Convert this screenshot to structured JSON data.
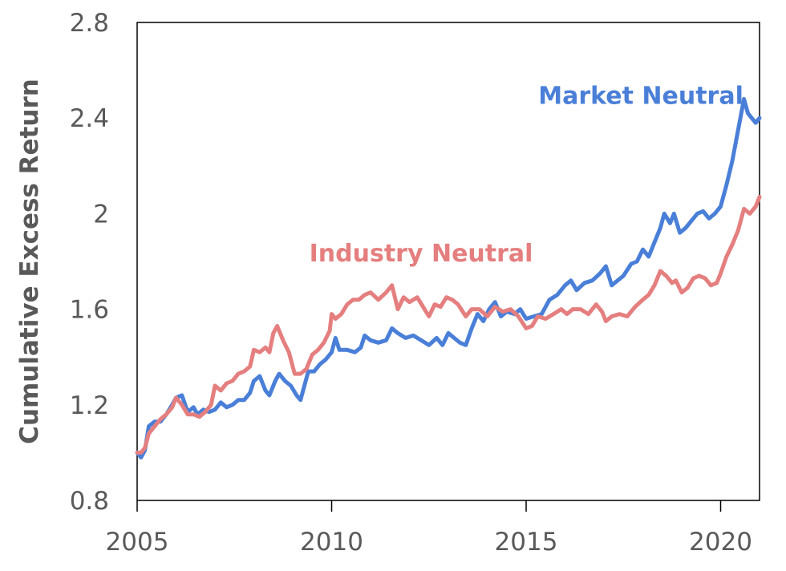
{
  "chart_data": {
    "type": "line",
    "title": "",
    "xlabel": "",
    "ylabel": "Cumulative Excess Return",
    "xlim": [
      2005,
      2021
    ],
    "ylim": [
      0.8,
      2.8
    ],
    "xticks": [
      2005,
      2010,
      2015,
      2020
    ],
    "yticks": [
      0.8,
      1.2,
      1.6,
      2,
      2.4,
      2.8
    ],
    "ytick_labels": [
      "0.8",
      "1.2",
      "1.6",
      "2",
      "2.4",
      "2.8"
    ],
    "grid": false,
    "legend": "none",
    "series": [
      {
        "name": "Market Neutral",
        "color": "#4a7fd8",
        "points": [
          [
            2005.0,
            1.0
          ],
          [
            2005.1,
            0.98
          ],
          [
            2005.2,
            1.01
          ],
          [
            2005.3,
            1.11
          ],
          [
            2005.45,
            1.13
          ],
          [
            2005.6,
            1.13
          ],
          [
            2005.75,
            1.16
          ],
          [
            2005.9,
            1.2
          ],
          [
            2006.0,
            1.23
          ],
          [
            2006.15,
            1.24
          ],
          [
            2006.3,
            1.17
          ],
          [
            2006.45,
            1.19
          ],
          [
            2006.55,
            1.16
          ],
          [
            2006.7,
            1.18
          ],
          [
            2006.85,
            1.17
          ],
          [
            2007.0,
            1.18
          ],
          [
            2007.15,
            1.21
          ],
          [
            2007.3,
            1.19
          ],
          [
            2007.45,
            1.2
          ],
          [
            2007.6,
            1.22
          ],
          [
            2007.75,
            1.22
          ],
          [
            2007.9,
            1.25
          ],
          [
            2008.0,
            1.3
          ],
          [
            2008.15,
            1.32
          ],
          [
            2008.3,
            1.26
          ],
          [
            2008.4,
            1.24
          ],
          [
            2008.55,
            1.3
          ],
          [
            2008.65,
            1.33
          ],
          [
            2008.8,
            1.3
          ],
          [
            2008.95,
            1.28
          ],
          [
            2009.1,
            1.24
          ],
          [
            2009.2,
            1.22
          ],
          [
            2009.3,
            1.28
          ],
          [
            2009.4,
            1.34
          ],
          [
            2009.55,
            1.34
          ],
          [
            2009.7,
            1.37
          ],
          [
            2009.85,
            1.39
          ],
          [
            2010.0,
            1.42
          ],
          [
            2010.1,
            1.48
          ],
          [
            2010.2,
            1.43
          ],
          [
            2010.4,
            1.43
          ],
          [
            2010.6,
            1.42
          ],
          [
            2010.75,
            1.44
          ],
          [
            2010.85,
            1.49
          ],
          [
            2011.0,
            1.47
          ],
          [
            2011.2,
            1.46
          ],
          [
            2011.4,
            1.47
          ],
          [
            2011.55,
            1.52
          ],
          [
            2011.7,
            1.5
          ],
          [
            2011.9,
            1.48
          ],
          [
            2012.1,
            1.49
          ],
          [
            2012.3,
            1.47
          ],
          [
            2012.5,
            1.45
          ],
          [
            2012.7,
            1.48
          ],
          [
            2012.85,
            1.45
          ],
          [
            2013.0,
            1.5
          ],
          [
            2013.15,
            1.48
          ],
          [
            2013.3,
            1.46
          ],
          [
            2013.45,
            1.45
          ],
          [
            2013.6,
            1.52
          ],
          [
            2013.75,
            1.58
          ],
          [
            2013.9,
            1.55
          ],
          [
            2014.05,
            1.6
          ],
          [
            2014.2,
            1.63
          ],
          [
            2014.35,
            1.57
          ],
          [
            2014.5,
            1.59
          ],
          [
            2014.7,
            1.58
          ],
          [
            2014.85,
            1.6
          ],
          [
            2015.0,
            1.56
          ],
          [
            2015.2,
            1.57
          ],
          [
            2015.4,
            1.58
          ],
          [
            2015.6,
            1.64
          ],
          [
            2015.8,
            1.66
          ],
          [
            2016.0,
            1.7
          ],
          [
            2016.15,
            1.72
          ],
          [
            2016.3,
            1.68
          ],
          [
            2016.5,
            1.71
          ],
          [
            2016.7,
            1.72
          ],
          [
            2016.9,
            1.75
          ],
          [
            2017.05,
            1.78
          ],
          [
            2017.2,
            1.7
          ],
          [
            2017.35,
            1.72
          ],
          [
            2017.5,
            1.74
          ],
          [
            2017.7,
            1.79
          ],
          [
            2017.85,
            1.8
          ],
          [
            2018.0,
            1.85
          ],
          [
            2018.15,
            1.82
          ],
          [
            2018.3,
            1.88
          ],
          [
            2018.45,
            1.94
          ],
          [
            2018.55,
            2.0
          ],
          [
            2018.7,
            1.96
          ],
          [
            2018.8,
            2.0
          ],
          [
            2018.95,
            1.92
          ],
          [
            2019.1,
            1.94
          ],
          [
            2019.25,
            1.97
          ],
          [
            2019.4,
            2.0
          ],
          [
            2019.55,
            2.01
          ],
          [
            2019.7,
            1.98
          ],
          [
            2019.85,
            2.0
          ],
          [
            2020.0,
            2.03
          ],
          [
            2020.15,
            2.12
          ],
          [
            2020.3,
            2.22
          ],
          [
            2020.45,
            2.35
          ],
          [
            2020.6,
            2.48
          ],
          [
            2020.7,
            2.42
          ],
          [
            2020.8,
            2.4
          ],
          [
            2020.9,
            2.38
          ],
          [
            2021.0,
            2.4
          ]
        ]
      },
      {
        "name": "Industry Neutral",
        "color": "#e57f7f",
        "points": [
          [
            2005.0,
            1.0
          ],
          [
            2005.1,
            1.0
          ],
          [
            2005.2,
            1.02
          ],
          [
            2005.3,
            1.08
          ],
          [
            2005.45,
            1.11
          ],
          [
            2005.6,
            1.14
          ],
          [
            2005.75,
            1.16
          ],
          [
            2005.9,
            1.19
          ],
          [
            2006.0,
            1.23
          ],
          [
            2006.15,
            1.2
          ],
          [
            2006.3,
            1.16
          ],
          [
            2006.45,
            1.16
          ],
          [
            2006.6,
            1.15
          ],
          [
            2006.75,
            1.17
          ],
          [
            2006.9,
            1.2
          ],
          [
            2007.0,
            1.28
          ],
          [
            2007.15,
            1.26
          ],
          [
            2007.3,
            1.29
          ],
          [
            2007.45,
            1.3
          ],
          [
            2007.6,
            1.33
          ],
          [
            2007.75,
            1.34
          ],
          [
            2007.9,
            1.36
          ],
          [
            2008.0,
            1.43
          ],
          [
            2008.15,
            1.42
          ],
          [
            2008.3,
            1.44
          ],
          [
            2008.4,
            1.42
          ],
          [
            2008.5,
            1.5
          ],
          [
            2008.6,
            1.53
          ],
          [
            2008.75,
            1.47
          ],
          [
            2008.9,
            1.42
          ],
          [
            2009.05,
            1.33
          ],
          [
            2009.2,
            1.33
          ],
          [
            2009.35,
            1.35
          ],
          [
            2009.5,
            1.41
          ],
          [
            2009.65,
            1.43
          ],
          [
            2009.8,
            1.46
          ],
          [
            2009.95,
            1.51
          ],
          [
            2010.0,
            1.58
          ],
          [
            2010.1,
            1.56
          ],
          [
            2010.25,
            1.58
          ],
          [
            2010.4,
            1.62
          ],
          [
            2010.55,
            1.64
          ],
          [
            2010.7,
            1.64
          ],
          [
            2010.85,
            1.66
          ],
          [
            2011.0,
            1.67
          ],
          [
            2011.2,
            1.64
          ],
          [
            2011.4,
            1.67
          ],
          [
            2011.55,
            1.7
          ],
          [
            2011.7,
            1.6
          ],
          [
            2011.85,
            1.65
          ],
          [
            2012.0,
            1.63
          ],
          [
            2012.2,
            1.65
          ],
          [
            2012.35,
            1.61
          ],
          [
            2012.5,
            1.57
          ],
          [
            2012.65,
            1.62
          ],
          [
            2012.8,
            1.61
          ],
          [
            2012.95,
            1.65
          ],
          [
            2013.1,
            1.64
          ],
          [
            2013.25,
            1.62
          ],
          [
            2013.45,
            1.57
          ],
          [
            2013.6,
            1.6
          ],
          [
            2013.8,
            1.6
          ],
          [
            2014.0,
            1.57
          ],
          [
            2014.2,
            1.61
          ],
          [
            2014.4,
            1.59
          ],
          [
            2014.6,
            1.6
          ],
          [
            2014.8,
            1.57
          ],
          [
            2015.0,
            1.52
          ],
          [
            2015.15,
            1.53
          ],
          [
            2015.3,
            1.57
          ],
          [
            2015.5,
            1.56
          ],
          [
            2015.7,
            1.58
          ],
          [
            2015.9,
            1.6
          ],
          [
            2016.05,
            1.58
          ],
          [
            2016.2,
            1.6
          ],
          [
            2016.4,
            1.6
          ],
          [
            2016.6,
            1.58
          ],
          [
            2016.8,
            1.62
          ],
          [
            2016.95,
            1.59
          ],
          [
            2017.05,
            1.55
          ],
          [
            2017.2,
            1.57
          ],
          [
            2017.4,
            1.58
          ],
          [
            2017.6,
            1.57
          ],
          [
            2017.8,
            1.61
          ],
          [
            2018.0,
            1.64
          ],
          [
            2018.15,
            1.66
          ],
          [
            2018.3,
            1.7
          ],
          [
            2018.45,
            1.76
          ],
          [
            2018.6,
            1.74
          ],
          [
            2018.75,
            1.71
          ],
          [
            2018.85,
            1.72
          ],
          [
            2019.0,
            1.67
          ],
          [
            2019.15,
            1.69
          ],
          [
            2019.3,
            1.73
          ],
          [
            2019.45,
            1.74
          ],
          [
            2019.6,
            1.73
          ],
          [
            2019.75,
            1.7
          ],
          [
            2019.9,
            1.71
          ],
          [
            2020.0,
            1.75
          ],
          [
            2020.15,
            1.82
          ],
          [
            2020.3,
            1.87
          ],
          [
            2020.45,
            1.93
          ],
          [
            2020.6,
            2.02
          ],
          [
            2020.75,
            2.0
          ],
          [
            2020.9,
            2.03
          ],
          [
            2021.0,
            2.07
          ]
        ]
      }
    ]
  }
}
